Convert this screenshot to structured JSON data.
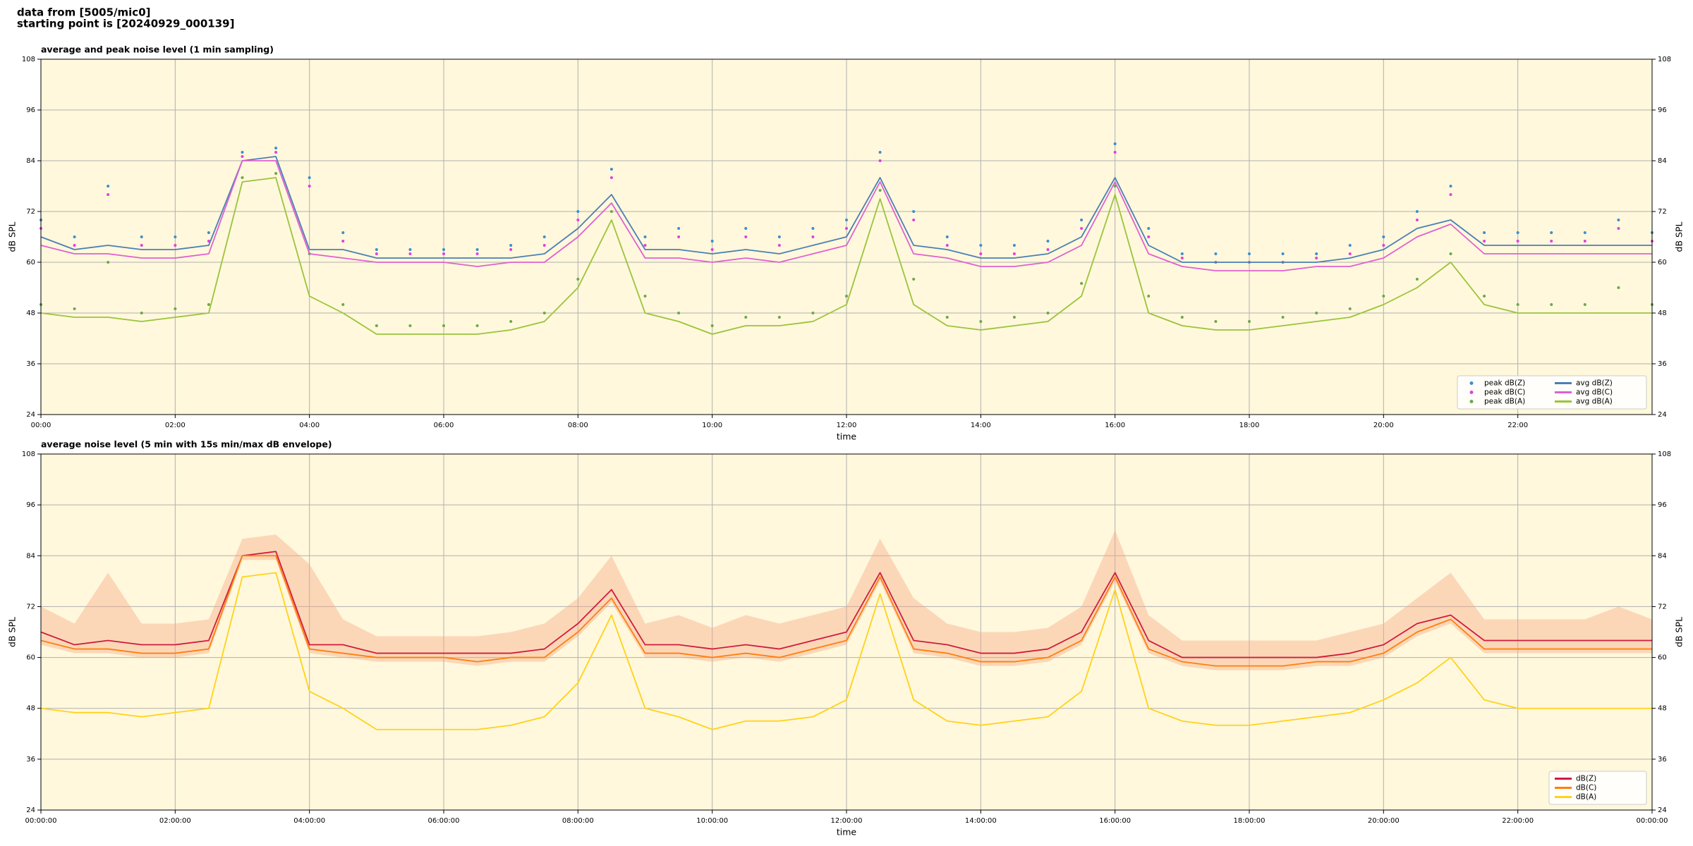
{
  "header": {
    "lines": [
      "data from [5005/mic0]",
      "starting point is [20240929_000139]"
    ]
  },
  "chart_data": [
    {
      "type": "line",
      "title": "average and peak noise level (1 min sampling)",
      "xlabel": "time",
      "ylabel": "dB SPL",
      "x": [
        0,
        0.5,
        1,
        1.5,
        2,
        2.5,
        3,
        3.5,
        4,
        4.5,
        5,
        5.5,
        6,
        6.5,
        7,
        7.5,
        8,
        8.5,
        9,
        9.5,
        10,
        10.5,
        11,
        11.5,
        12,
        12.5,
        13,
        13.5,
        14,
        14.5,
        15,
        15.5,
        16,
        16.5,
        17,
        17.5,
        18,
        18.5,
        19,
        19.5,
        20,
        20.5,
        21,
        21.5,
        22,
        22.5,
        23,
        23.5,
        24
      ],
      "xlim": [
        0,
        24
      ],
      "xticks": [
        {
          "value": 0,
          "label": "00:00"
        },
        {
          "value": 2,
          "label": "02:00"
        },
        {
          "value": 4,
          "label": "04:00"
        },
        {
          "value": 6,
          "label": "06:00"
        },
        {
          "value": 8,
          "label": "08:00"
        },
        {
          "value": 10,
          "label": "10:00"
        },
        {
          "value": 12,
          "label": "12:00"
        },
        {
          "value": 14,
          "label": "14:00"
        },
        {
          "value": 16,
          "label": "16:00"
        },
        {
          "value": 18,
          "label": "18:00"
        },
        {
          "value": 20,
          "label": "20:00"
        },
        {
          "value": 22,
          "label": "22:00"
        }
      ],
      "ylim": [
        24,
        108
      ],
      "yticks": [
        24,
        36,
        48,
        60,
        72,
        84,
        96,
        108
      ],
      "mirror_y": true,
      "grid": true,
      "background": "#fff8dc",
      "legend": "lower right",
      "legend_columns": 2,
      "series": [
        {
          "name": "peak dB(Z)",
          "color": "#3a8fd0",
          "marker": "dot",
          "values": [
            70,
            66,
            78,
            66,
            66,
            67,
            86,
            87,
            80,
            67,
            63,
            63,
            63,
            63,
            64,
            66,
            72,
            82,
            66,
            68,
            65,
            68,
            66,
            68,
            70,
            86,
            72,
            66,
            64,
            64,
            65,
            70,
            88,
            68,
            62,
            62,
            62,
            62,
            62,
            64,
            66,
            72,
            78,
            67,
            67,
            67,
            67,
            70,
            67
          ]
        },
        {
          "name": "peak dB(C)",
          "color": "#e040e0",
          "marker": "dot",
          "values": [
            68,
            64,
            76,
            64,
            64,
            65,
            85,
            86,
            78,
            65,
            62,
            62,
            62,
            62,
            63,
            64,
            70,
            80,
            64,
            66,
            63,
            66,
            64,
            66,
            68,
            84,
            70,
            64,
            62,
            62,
            63,
            68,
            86,
            66,
            61,
            60,
            60,
            60,
            61,
            62,
            64,
            70,
            76,
            65,
            65,
            65,
            65,
            68,
            65
          ]
        },
        {
          "name": "peak dB(A)",
          "color": "#6aa84f",
          "marker": "dot",
          "values": [
            50,
            49,
            60,
            48,
            49,
            50,
            80,
            81,
            62,
            50,
            45,
            45,
            45,
            45,
            46,
            48,
            56,
            72,
            52,
            48,
            45,
            47,
            47,
            48,
            52,
            77,
            56,
            47,
            46,
            47,
            48,
            55,
            78,
            52,
            47,
            46,
            46,
            47,
            48,
            49,
            52,
            56,
            62,
            52,
            50,
            50,
            50,
            54,
            50
          ]
        },
        {
          "name": "avg dB(Z)",
          "color": "#4a7fb5",
          "values": [
            66,
            63,
            64,
            63,
            63,
            64,
            84,
            85,
            63,
            63,
            61,
            61,
            61,
            61,
            61,
            62,
            68,
            76,
            63,
            63,
            62,
            63,
            62,
            64,
            66,
            80,
            64,
            63,
            61,
            61,
            62,
            66,
            80,
            64,
            60,
            60,
            60,
            60,
            60,
            61,
            63,
            68,
            70,
            64,
            64,
            64,
            64,
            64,
            64
          ]
        },
        {
          "name": "avg dB(C)",
          "color": "#e060d0",
          "values": [
            64,
            62,
            62,
            61,
            61,
            62,
            84,
            84,
            62,
            61,
            60,
            60,
            60,
            59,
            60,
            60,
            66,
            74,
            61,
            61,
            60,
            61,
            60,
            62,
            64,
            79,
            62,
            61,
            59,
            59,
            60,
            64,
            79,
            62,
            59,
            58,
            58,
            58,
            59,
            59,
            61,
            66,
            69,
            62,
            62,
            62,
            62,
            62,
            62
          ]
        },
        {
          "name": "avg dB(A)",
          "color": "#9ac43a",
          "values": [
            48,
            47,
            47,
            46,
            47,
            48,
            79,
            80,
            52,
            48,
            43,
            43,
            43,
            43,
            44,
            46,
            54,
            70,
            48,
            46,
            43,
            45,
            45,
            46,
            50,
            75,
            50,
            45,
            44,
            45,
            46,
            52,
            76,
            48,
            45,
            44,
            44,
            45,
            46,
            47,
            50,
            54,
            60,
            50,
            48,
            48,
            48,
            48,
            48
          ]
        }
      ]
    },
    {
      "type": "line",
      "title": "average noise level (5 min with 15s min/max dB envelope)",
      "xlabel": "time",
      "ylabel": "dB SPL",
      "x": [
        0,
        0.5,
        1,
        1.5,
        2,
        2.5,
        3,
        3.5,
        4,
        4.5,
        5,
        5.5,
        6,
        6.5,
        7,
        7.5,
        8,
        8.5,
        9,
        9.5,
        10,
        10.5,
        11,
        11.5,
        12,
        12.5,
        13,
        13.5,
        14,
        14.5,
        15,
        15.5,
        16,
        16.5,
        17,
        17.5,
        18,
        18.5,
        19,
        19.5,
        20,
        20.5,
        21,
        21.5,
        22,
        22.5,
        23,
        23.5,
        24
      ],
      "xlim": [
        0,
        24
      ],
      "xticks": [
        {
          "value": 0,
          "label": "00:00:00"
        },
        {
          "value": 2,
          "label": "02:00:00"
        },
        {
          "value": 4,
          "label": "04:00:00"
        },
        {
          "value": 6,
          "label": "06:00:00"
        },
        {
          "value": 8,
          "label": "08:00:00"
        },
        {
          "value": 10,
          "label": "10:00:00"
        },
        {
          "value": 12,
          "label": "12:00:00"
        },
        {
          "value": 14,
          "label": "14:00:00"
        },
        {
          "value": 16,
          "label": "16:00:00"
        },
        {
          "value": 18,
          "label": "18:00:00"
        },
        {
          "value": 20,
          "label": "20:00:00"
        },
        {
          "value": 22,
          "label": "22:00:00"
        },
        {
          "value": 24,
          "label": "00:00:00"
        }
      ],
      "ylim": [
        24,
        108
      ],
      "yticks": [
        24,
        36,
        48,
        60,
        72,
        84,
        96,
        108
      ],
      "mirror_y": true,
      "grid": true,
      "background": "#fff8dc",
      "legend": "lower right",
      "legend_columns": 1,
      "envelope": {
        "color": "#f4a582",
        "lower": [
          63,
          61,
          61,
          60,
          60,
          61,
          83,
          83,
          61,
          60,
          59,
          59,
          59,
          58,
          59,
          59,
          65,
          73,
          60,
          60,
          59,
          60,
          59,
          61,
          63,
          78,
          61,
          60,
          58,
          58,
          59,
          63,
          78,
          61,
          58,
          57,
          57,
          57,
          58,
          58,
          60,
          65,
          68,
          61,
          61,
          61,
          61,
          61,
          61
        ],
        "upper": [
          72,
          68,
          80,
          68,
          68,
          69,
          88,
          89,
          82,
          69,
          65,
          65,
          65,
          65,
          66,
          68,
          74,
          84,
          68,
          70,
          67,
          70,
          68,
          70,
          72,
          88,
          74,
          68,
          66,
          66,
          67,
          72,
          90,
          70,
          64,
          64,
          64,
          64,
          64,
          66,
          68,
          74,
          80,
          69,
          69,
          69,
          69,
          72,
          69
        ]
      },
      "series": [
        {
          "name": "dB(Z)",
          "color": "#d01c3c",
          "values": [
            66,
            63,
            64,
            63,
            63,
            64,
            84,
            85,
            63,
            63,
            61,
            61,
            61,
            61,
            61,
            62,
            68,
            76,
            63,
            63,
            62,
            63,
            62,
            64,
            66,
            80,
            64,
            63,
            61,
            61,
            62,
            66,
            80,
            64,
            60,
            60,
            60,
            60,
            60,
            61,
            63,
            68,
            70,
            64,
            64,
            64,
            64,
            64,
            64
          ]
        },
        {
          "name": "dB(C)",
          "color": "#ff7f0e",
          "values": [
            64,
            62,
            62,
            61,
            61,
            62,
            84,
            84,
            62,
            61,
            60,
            60,
            60,
            59,
            60,
            60,
            66,
            74,
            61,
            61,
            60,
            61,
            60,
            62,
            64,
            79,
            62,
            61,
            59,
            59,
            60,
            64,
            79,
            62,
            59,
            58,
            58,
            58,
            59,
            59,
            61,
            66,
            69,
            62,
            62,
            62,
            62,
            62,
            62
          ]
        },
        {
          "name": "dB(A)",
          "color": "#ffd21a",
          "values": [
            48,
            47,
            47,
            46,
            47,
            48,
            79,
            80,
            52,
            48,
            43,
            43,
            43,
            43,
            44,
            46,
            54,
            70,
            48,
            46,
            43,
            45,
            45,
            46,
            50,
            75,
            50,
            45,
            44,
            45,
            46,
            52,
            76,
            48,
            45,
            44,
            44,
            45,
            46,
            47,
            50,
            54,
            60,
            50,
            48,
            48,
            48,
            48,
            48
          ]
        }
      ]
    }
  ]
}
